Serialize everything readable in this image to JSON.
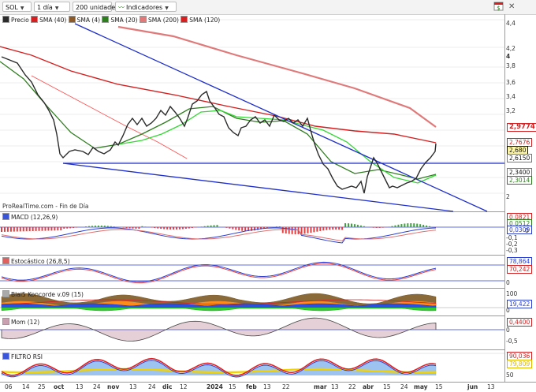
{
  "toolbar": {
    "symbol": "SOL",
    "interval": "1 día",
    "units": "200 unidades",
    "indicators": "Indicadores"
  },
  "legend": [
    {
      "label": "Precio",
      "color": "#2b2b2b"
    },
    {
      "label": "SMA (40)",
      "color": "#d42020"
    },
    {
      "label": "SMA (4)",
      "color": "#8b5a2b"
    },
    {
      "label": "SMA (20)",
      "color": "#2e7d1e"
    },
    {
      "label": "SMA (200)",
      "color": "#e07a7a"
    },
    {
      "label": "SMA (120)",
      "color": "#d42020"
    }
  ],
  "price_axis": [
    "4,4",
    "4,2",
    "4",
    "3,8",
    "3,6",
    "3,4",
    "3,2",
    "2",
    "2,2"
  ],
  "price_tags": [
    {
      "value": "2,9774",
      "color": "#d42020"
    },
    {
      "value": "2,7676",
      "color": "#d42020"
    },
    {
      "value": "2,680",
      "color": "#111111"
    },
    {
      "value": "2,6150",
      "color": "#111111"
    },
    {
      "value": "2,3400",
      "color": "#111111"
    },
    {
      "value": "2,3014",
      "color": "#2e7d1e"
    }
  ],
  "watermark": "ProRealTime.com - Fin de Día",
  "panels": {
    "macd": {
      "title": "MACD (12,26,9)",
      "axis": [
        "0",
        "-0,1",
        "-0,2",
        "-0,3"
      ],
      "tags": [
        "0,0821",
        "0,0512",
        "0,0309"
      ]
    },
    "stoch": {
      "title": "Estocástico (26,8,5)",
      "axis": [
        "0"
      ],
      "tags": [
        "78,864",
        "70,242"
      ]
    },
    "blai5": {
      "title": "Blai5 Koncorde v.09 (15)",
      "axis": [
        "100",
        "50",
        "0"
      ],
      "tags": [
        "19,422"
      ]
    },
    "mom": {
      "title": "Mom (12)",
      "axis": [
        "0",
        "-0,5"
      ],
      "tags": [
        "0,4400"
      ]
    },
    "rsi": {
      "title": "FILTRO RSI",
      "axis": [
        "100",
        "50"
      ],
      "tags": [
        "90,036",
        "79,809"
      ]
    }
  },
  "x_axis": [
    "06",
    "14",
    "25",
    "oct",
    "13",
    "24",
    "nov",
    "13",
    "24",
    "dic",
    "12",
    "2024",
    "15",
    "feb",
    "13",
    "22",
    "mar",
    "13",
    "22",
    "abr",
    "15",
    "24",
    "may",
    "15",
    "jun",
    "13"
  ]
}
